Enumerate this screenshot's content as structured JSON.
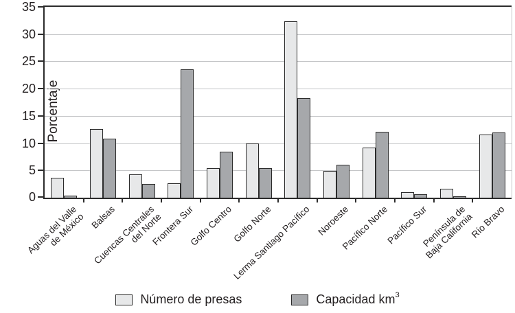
{
  "chart_data": {
    "type": "bar",
    "title": "",
    "xlabel": "",
    "ylabel": "Porcentaje",
    "ylim": [
      0,
      35
    ],
    "ytick_step": 5,
    "yticks": [
      0,
      5,
      10,
      15,
      20,
      25,
      30,
      35
    ],
    "grid": true,
    "legend_position": "bottom",
    "categories": [
      "Aguas del Valle\nde México",
      "Balsas",
      "Cuencas Centrales\ndel Norte",
      "Frontera Sur",
      "Golfo Centro",
      "Golfo Norte",
      "Lerma Santiago Pacífico",
      "Noroeste",
      "Pacífico Norte",
      "Pacífico Sur",
      "Península de\nBaja California",
      "Río Bravo"
    ],
    "series": [
      {
        "name": "Número de presas",
        "color": "#e7e8e9",
        "values": [
          3.6,
          12.6,
          4.3,
          2.7,
          5.4,
          9.9,
          32.3,
          4.9,
          9.2,
          1.0,
          1.6,
          11.6
        ]
      },
      {
        "name": "Capacidad km³",
        "color": "#a6a8ab",
        "values": [
          0.4,
          10.8,
          2.5,
          23.5,
          8.5,
          5.4,
          18.2,
          6.1,
          12.1,
          0.6,
          0.2,
          11.9
        ]
      }
    ]
  },
  "legend": {
    "items": [
      {
        "label": "Número de presas",
        "sup": ""
      },
      {
        "label": "Capacidad km",
        "sup": "3"
      }
    ]
  },
  "colors": {
    "bar_light": "#e7e8e9",
    "bar_dark": "#a6a8ab",
    "bar_border": "#2b2b2b",
    "gridline": "#c4c5c7",
    "axis": "#2b2b2b",
    "text": "#231f20"
  }
}
